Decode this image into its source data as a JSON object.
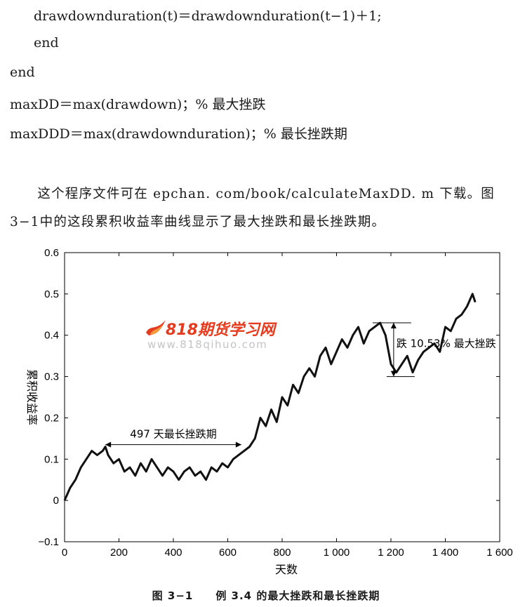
{
  "code_lines": [
    "drawdownduration(t)＝drawdownduration(t−1)＋1;",
    "end",
    "end",
    "maxDD＝max(drawdown)；% 最大挫跌",
    "maxDDD＝max(drawdownduration)；% 最长挫跌期"
  ],
  "paragraph": {
    "line1": "　　这个程序文件可在 epchan. com/book/calculateMaxDD. m 下载。图",
    "line2": "3−1中的这段累积收益率曲线显示了最大挫跌和最长挫跌期。"
  },
  "watermark": {
    "title": "818期货学习网",
    "url": "www.818qihuo.com",
    "logo_color": "#e53b1e"
  },
  "chart_data": {
    "type": "line",
    "xlabel": "天数",
    "ylabel": "累积收益率",
    "xlim": [
      0,
      1600
    ],
    "ylim": [
      -0.1,
      0.6
    ],
    "x_ticks": [
      0,
      200,
      400,
      600,
      800,
      1000,
      1200,
      1400,
      1600
    ],
    "x_tick_labels": [
      "0",
      "200",
      "400",
      "600",
      "800",
      "1 000",
      "1 200",
      "1 400",
      "1 600"
    ],
    "y_ticks": [
      -0.1,
      0,
      0.1,
      0.2,
      0.3,
      0.4,
      0.5,
      0.6
    ],
    "y_tick_labels": [
      "−0.1",
      "0",
      "0.1",
      "0.2",
      "0.3",
      "0.4",
      "0.5",
      "0.6"
    ],
    "line_color": "#111111",
    "series": [
      {
        "x": [
          0,
          20,
          40,
          60,
          80,
          100,
          120,
          140,
          150,
          160,
          180,
          200,
          220,
          240,
          260,
          280,
          300,
          320,
          340,
          360,
          380,
          400,
          420,
          440,
          460,
          480,
          500,
          520,
          540,
          560,
          580,
          600,
          620,
          640,
          660,
          680,
          700,
          720,
          740,
          760,
          780,
          800,
          820,
          840,
          860,
          880,
          900,
          920,
          940,
          960,
          980,
          1000,
          1020,
          1040,
          1060,
          1080,
          1100,
          1120,
          1140,
          1160,
          1180,
          1200,
          1220,
          1240,
          1260,
          1280,
          1300,
          1320,
          1340,
          1360,
          1380,
          1400,
          1420,
          1440,
          1460,
          1480,
          1500,
          1510
        ],
        "y": [
          0.0,
          0.03,
          0.05,
          0.08,
          0.1,
          0.12,
          0.11,
          0.12,
          0.13,
          0.11,
          0.09,
          0.1,
          0.07,
          0.08,
          0.06,
          0.09,
          0.07,
          0.1,
          0.08,
          0.06,
          0.08,
          0.07,
          0.05,
          0.07,
          0.08,
          0.06,
          0.07,
          0.05,
          0.08,
          0.07,
          0.09,
          0.08,
          0.1,
          0.11,
          0.12,
          0.13,
          0.15,
          0.2,
          0.18,
          0.22,
          0.19,
          0.25,
          0.23,
          0.28,
          0.26,
          0.3,
          0.32,
          0.3,
          0.35,
          0.37,
          0.33,
          0.36,
          0.39,
          0.37,
          0.4,
          0.42,
          0.38,
          0.41,
          0.42,
          0.43,
          0.4,
          0.33,
          0.31,
          0.33,
          0.35,
          0.31,
          0.34,
          0.36,
          0.37,
          0.38,
          0.36,
          0.42,
          0.41,
          0.44,
          0.45,
          0.47,
          0.5,
          0.48
        ]
      }
    ],
    "annotations": [
      {
        "text": "497 天最长挫跌期",
        "x_from": 150,
        "x_to": 650,
        "y": 0.135
      },
      {
        "text": "跌 10.53% 最大挫跌",
        "x": 1210,
        "y_from": 0.3,
        "y_to": 0.43
      }
    ]
  },
  "caption": "图 3−1　　例 3.4 的最大挫跌和最长挫跌期"
}
